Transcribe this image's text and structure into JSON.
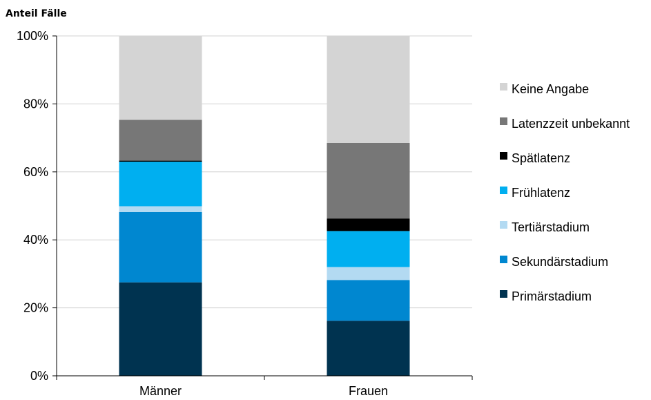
{
  "chart_data": {
    "type": "bar",
    "stacked": true,
    "ylabel": "Anteil Fälle",
    "ylim": [
      0,
      100
    ],
    "yticks": [
      "0%",
      "20%",
      "40%",
      "60%",
      "80%",
      "100%"
    ],
    "categories": [
      "Männer",
      "Frauen"
    ],
    "series": [
      {
        "name": "Primärstadium",
        "color": "#003350",
        "values": [
          27.5,
          16.2
        ]
      },
      {
        "name": "Sekundärstadium",
        "color": "#0087d0",
        "values": [
          20.7,
          12.0
        ]
      },
      {
        "name": "Tertiärstadium",
        "color": "#b3daf2",
        "values": [
          1.7,
          3.8
        ]
      },
      {
        "name": "Frühlatenz",
        "color": "#00aff0",
        "values": [
          13.1,
          10.6
        ]
      },
      {
        "name": "Spätlatenz",
        "color": "#000000",
        "values": [
          0.3,
          3.7
        ]
      },
      {
        "name": "Latenzzeit unbekannt",
        "color": "#777777",
        "values": [
          12.0,
          22.2
        ]
      },
      {
        "name": "Keine Angabe",
        "color": "#d4d4d4",
        "values": [
          24.7,
          31.5
        ]
      }
    ],
    "grid": true,
    "legend_position": "right"
  }
}
